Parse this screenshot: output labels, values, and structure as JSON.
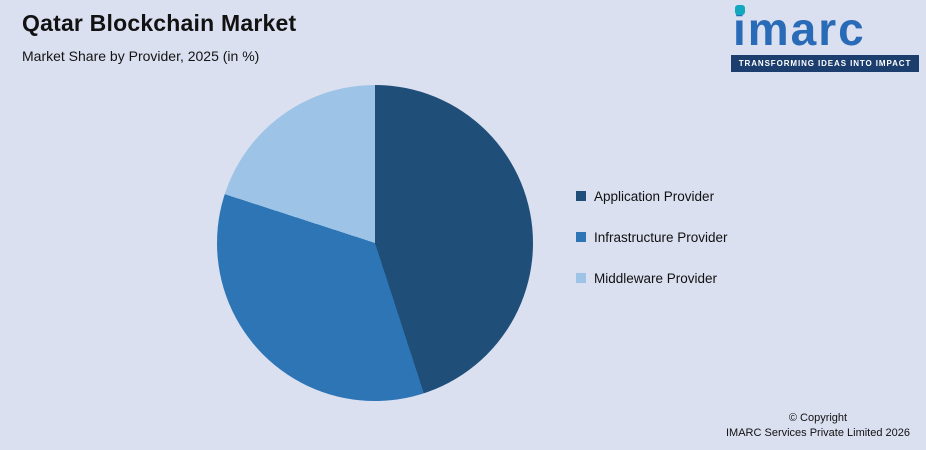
{
  "colors": {
    "background": "#dbe0f1",
    "text": "#121212"
  },
  "header": {
    "title": "Qatar Blockchain Market",
    "subtitle": "Market Share by Provider, 2025 (in %)"
  },
  "logo": {
    "brand": "imarc",
    "tagline": "TRANSFORMING IDEAS INTO IMPACT",
    "brand_color": "#2a6bb7",
    "dot_color": "#12a8bd",
    "tagline_bg": "#1c3e6e"
  },
  "chart_data": {
    "type": "pie",
    "title": "Qatar Blockchain Market",
    "subtitle": "Market Share by Provider, 2025 (in %)",
    "start_angle_deg": 0,
    "direction": "clockwise",
    "legend_position": "right",
    "value_labels_shown": false,
    "series": [
      {
        "name": "Application Provider",
        "value": 45,
        "color": "#1f4e79"
      },
      {
        "name": "Infrastructure Provider",
        "value": 35,
        "color": "#2e75b6"
      },
      {
        "name": "Middleware Provider",
        "value": 20,
        "color": "#9dc3e6"
      }
    ]
  },
  "footer": {
    "copyright_line1": "© Copyright",
    "copyright_line2": "IMARC Services Private Limited 2026"
  }
}
